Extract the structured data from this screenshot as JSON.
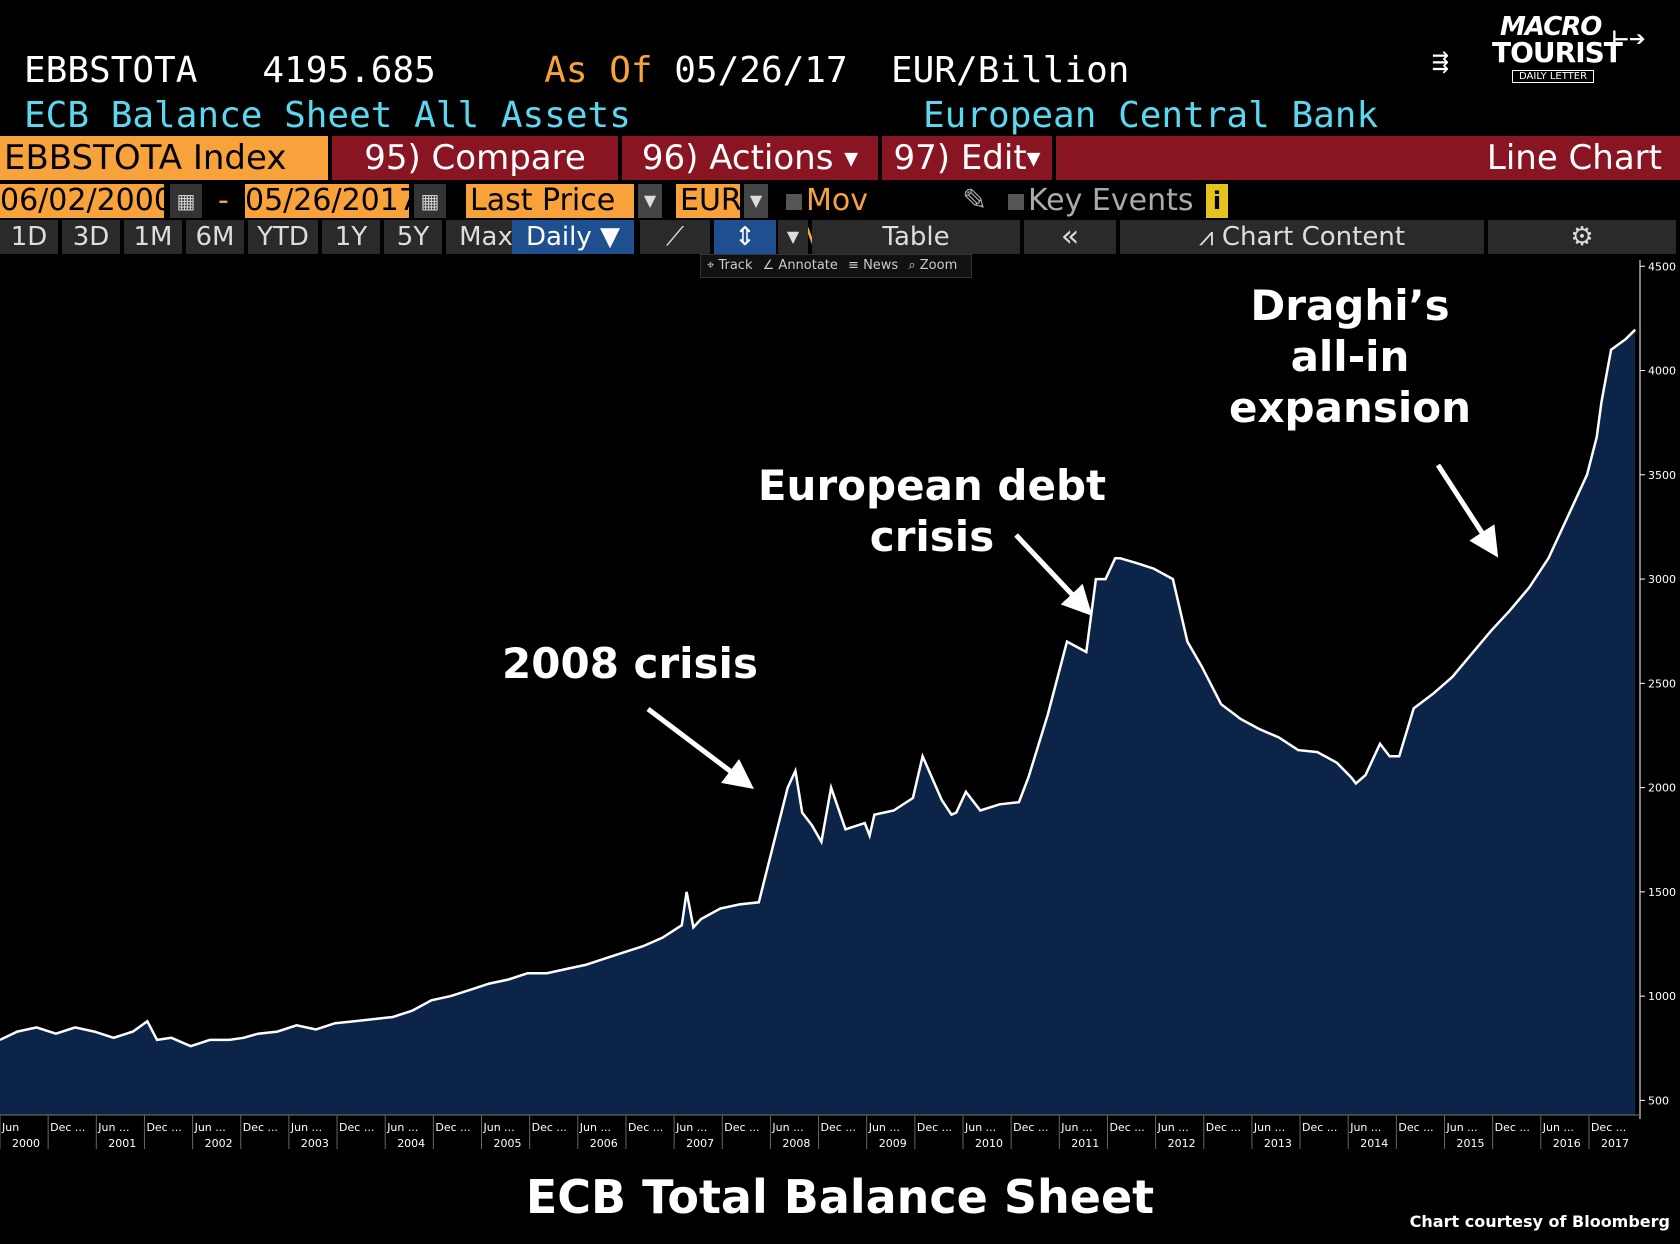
{
  "header": {
    "ticker": "EBBSTOTA",
    "last_value": "4195.685",
    "as_of_label": "As Of",
    "as_of_date": "05/26/17",
    "units": "EUR/Billion",
    "description": "ECB Balance Sheet All Assets",
    "source": "European Central Bank"
  },
  "logo": {
    "line1": "MACRO",
    "line2": "TOURIST",
    "line3": "DAILY LETTER"
  },
  "command_bar": {
    "index": "EBBSTOTA Index",
    "compare": "95) Compare",
    "actions": "96) Actions",
    "edit": "97) Edit",
    "chart_type": "Line Chart"
  },
  "date_row": {
    "start": "06/02/2000",
    "sep": "-",
    "end": "05/26/2017",
    "field": "Last Price",
    "currency": "EUR",
    "mov_avgs": "Mov Avgs",
    "key_events": "Key Events",
    "info": "i"
  },
  "period_row": {
    "periods": [
      "1D",
      "3D",
      "1M",
      "6M",
      "YTD",
      "1Y",
      "5Y",
      "Max"
    ],
    "frequency": "Daily ▼",
    "table": "Table",
    "collapse": "«",
    "chart_content": "Chart Content",
    "settings": "⚙"
  },
  "mini_toolbar": {
    "track": "Track",
    "annotate": "Annotate",
    "news": "News",
    "zoom": "Zoom"
  },
  "annotations": {
    "crisis_2008": "2008 crisis",
    "euro_debt": [
      "European debt",
      "crisis"
    ],
    "draghi": [
      "Draghi’s",
      "all-in",
      "expansion"
    ]
  },
  "footer": {
    "title": "ECB Total Balance Sheet",
    "credit": "Chart courtesy of Bloomberg"
  },
  "colors": {
    "area_fill": "#0b2447",
    "line": "#ffffff",
    "orange": "#f7a23b",
    "cyan": "#5ad8f0",
    "bar_red": "#8a1522"
  },
  "chart_data": {
    "type": "area",
    "title": "ECB Total Balance Sheet",
    "ylabel": "",
    "xlabel": "",
    "ylim": [
      430,
      4530
    ],
    "xlim": [
      2000.42,
      2017.45
    ],
    "yticks": [
      500,
      1000,
      1500,
      2000,
      2500,
      3000,
      3500,
      4000,
      4500
    ],
    "xtick_labels": [
      {
        "x": 2000.42,
        "top": "Jun",
        "bottom": "2000"
      },
      {
        "x": 2000.92,
        "top": "Dec ...",
        "bottom": ""
      },
      {
        "x": 2001.42,
        "top": "Jun ...",
        "bottom": "2001"
      },
      {
        "x": 2001.92,
        "top": "Dec ...",
        "bottom": ""
      },
      {
        "x": 2002.42,
        "top": "Jun ...",
        "bottom": "2002"
      },
      {
        "x": 2002.92,
        "top": "Dec ...",
        "bottom": ""
      },
      {
        "x": 2003.42,
        "top": "Jun ...",
        "bottom": "2003"
      },
      {
        "x": 2003.92,
        "top": "Dec ...",
        "bottom": ""
      },
      {
        "x": 2004.42,
        "top": "Jun ...",
        "bottom": "2004"
      },
      {
        "x": 2004.92,
        "top": "Dec ...",
        "bottom": ""
      },
      {
        "x": 2005.42,
        "top": "Jun ...",
        "bottom": "2005"
      },
      {
        "x": 2005.92,
        "top": "Dec ...",
        "bottom": ""
      },
      {
        "x": 2006.42,
        "top": "Jun ...",
        "bottom": "2006"
      },
      {
        "x": 2006.92,
        "top": "Dec ...",
        "bottom": ""
      },
      {
        "x": 2007.42,
        "top": "Jun ...",
        "bottom": "2007"
      },
      {
        "x": 2007.92,
        "top": "Dec ...",
        "bottom": ""
      },
      {
        "x": 2008.42,
        "top": "Jun ...",
        "bottom": "2008"
      },
      {
        "x": 2008.92,
        "top": "Dec ...",
        "bottom": ""
      },
      {
        "x": 2009.42,
        "top": "Jun ...",
        "bottom": "2009"
      },
      {
        "x": 2009.92,
        "top": "Dec ...",
        "bottom": ""
      },
      {
        "x": 2010.42,
        "top": "Jun ...",
        "bottom": "2010"
      },
      {
        "x": 2010.92,
        "top": "Dec ...",
        "bottom": ""
      },
      {
        "x": 2011.42,
        "top": "Jun ...",
        "bottom": "2011"
      },
      {
        "x": 2011.92,
        "top": "Dec ...",
        "bottom": ""
      },
      {
        "x": 2012.42,
        "top": "Jun ...",
        "bottom": "2012"
      },
      {
        "x": 2012.92,
        "top": "Dec ...",
        "bottom": ""
      },
      {
        "x": 2013.42,
        "top": "Jun ...",
        "bottom": "2013"
      },
      {
        "x": 2013.92,
        "top": "Dec ...",
        "bottom": ""
      },
      {
        "x": 2014.42,
        "top": "Jun ...",
        "bottom": "2014"
      },
      {
        "x": 2014.92,
        "top": "Dec ...",
        "bottom": ""
      },
      {
        "x": 2015.42,
        "top": "Jun ...",
        "bottom": "2015"
      },
      {
        "x": 2015.92,
        "top": "Dec ...",
        "bottom": ""
      },
      {
        "x": 2016.42,
        "top": "Jun ...",
        "bottom": "2016"
      },
      {
        "x": 2016.92,
        "top": "Dec ...",
        "bottom": "2017"
      }
    ],
    "series": [
      {
        "values_x": [
          2000.42,
          2000.6,
          2000.8,
          2001.0,
          2001.2,
          2001.4,
          2001.6,
          2001.8,
          2001.95,
          2002.05,
          2002.2,
          2002.4,
          2002.6,
          2002.8,
          2002.95,
          2003.1,
          2003.3,
          2003.5,
          2003.7,
          2003.9,
          2004.1,
          2004.3,
          2004.5,
          2004.7,
          2004.9,
          2005.1,
          2005.3,
          2005.5,
          2005.7,
          2005.9,
          2006.1,
          2006.3,
          2006.5,
          2006.7,
          2006.9,
          2007.1,
          2007.3,
          2007.5,
          2007.55,
          2007.62,
          2007.7,
          2007.9,
          2008.1,
          2008.3,
          2008.6,
          2008.68,
          2008.75,
          2008.85,
          2008.95,
          2009.05,
          2009.2,
          2009.4,
          2009.45,
          2009.5,
          2009.7,
          2009.9,
          2010.0,
          2010.2,
          2010.3,
          2010.35,
          2010.45,
          2010.6,
          2010.8,
          2011.0,
          2011.1,
          2011.3,
          2011.5,
          2011.7,
          2011.8,
          2011.9,
          2012.0,
          2012.05,
          2012.2,
          2012.4,
          2012.6,
          2012.75,
          2012.9,
          2013.1,
          2013.3,
          2013.5,
          2013.7,
          2013.9,
          2014.1,
          2014.3,
          2014.45,
          2014.5,
          2014.6,
          2014.75,
          2014.85,
          2014.95,
          2015.1,
          2015.3,
          2015.5,
          2015.7,
          2015.9,
          2016.1,
          2016.3,
          2016.5,
          2016.7,
          2016.9,
          2017.0,
          2017.05,
          2017.15,
          2017.3,
          2017.4
        ],
        "values": [
          790,
          830,
          850,
          820,
          850,
          830,
          800,
          830,
          880,
          790,
          800,
          760,
          790,
          790,
          800,
          820,
          830,
          860,
          840,
          870,
          880,
          890,
          900,
          930,
          980,
          1000,
          1030,
          1060,
          1080,
          1110,
          1110,
          1130,
          1150,
          1180,
          1210,
          1240,
          1280,
          1340,
          1500,
          1330,
          1370,
          1420,
          1440,
          1450,
          2000,
          2080,
          1880,
          1820,
          1740,
          2000,
          1800,
          1830,
          1770,
          1870,
          1890,
          1950,
          2150,
          1940,
          1870,
          1880,
          1980,
          1890,
          1920,
          1930,
          2050,
          2350,
          2700,
          2650,
          3000,
          3000,
          3100,
          3100,
          3080,
          3050,
          3000,
          2700,
          2580,
          2400,
          2330,
          2280,
          2240,
          2180,
          2170,
          2120,
          2050,
          2020,
          2060,
          2210,
          2150,
          2150,
          2380,
          2450,
          2530,
          2640,
          2750,
          2850,
          2960,
          3100,
          3300,
          3500,
          3680,
          3850,
          4100,
          4150,
          4195.685
        ],
        "name": ""
      }
    ]
  }
}
